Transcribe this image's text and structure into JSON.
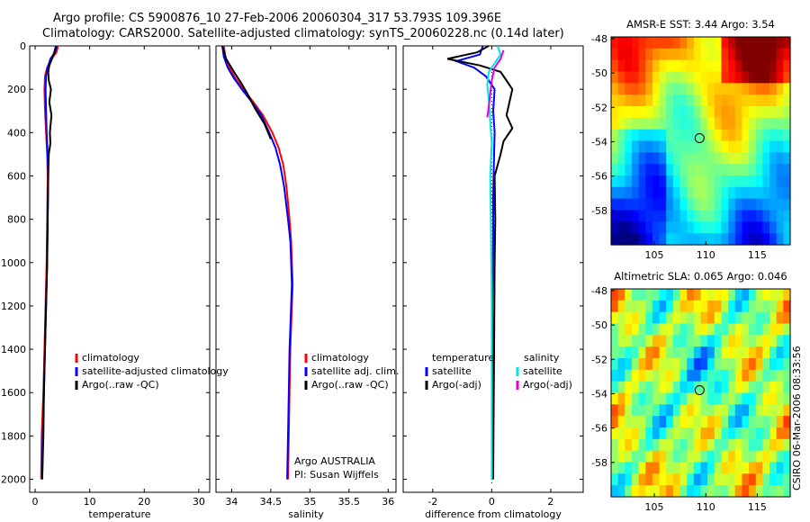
{
  "header": {
    "line1": "Argo profile: CS 5900876_10 27-Feb-2006 20060304_317 53.793S 109.396E",
    "line2": "Climatology: CARS2000. Satellite-adjusted climatology: synTS_20060228.nc (0.14d later)"
  },
  "colors": {
    "climatology": "#ff0000",
    "satellite": "#0000ff",
    "argo": "#000000",
    "salinity_satellite": "#00e5e5",
    "salinity_argo": "#e000e0"
  },
  "chart_data": [
    {
      "type": "line",
      "name": "temperature-profile",
      "xlabel": "temperature",
      "ylabel": "",
      "xlim": [
        -1,
        32
      ],
      "ylim": [
        2060,
        0
      ],
      "xticks": [
        0,
        10,
        20,
        30
      ],
      "yticks": [
        0,
        200,
        400,
        600,
        800,
        1000,
        1200,
        1400,
        1600,
        1800,
        2000
      ],
      "ytick_labels": [
        "0",
        "200",
        "400",
        "600",
        "800",
        "1000",
        "1200",
        "1400",
        "1600",
        "1800",
        "2000"
      ],
      "series": [
        {
          "name": "climatology",
          "color": "#ff0000",
          "x": [
            4.2,
            3.9,
            3.0,
            2.2,
            1.8,
            1.7,
            1.8,
            2.0,
            2.2,
            2.3,
            2.2,
            2.1,
            1.9,
            1.7,
            1.5,
            1.2,
            1.1
          ],
          "y": [
            0,
            30,
            60,
            100,
            140,
            200,
            300,
            400,
            500,
            600,
            800,
            1000,
            1200,
            1400,
            1600,
            1800,
            2000
          ]
        },
        {
          "name": "satellite-adjusted climatology",
          "color": "#0000ff",
          "x": [
            4.0,
            3.6,
            2.8,
            2.3,
            2.0,
            1.9,
            2.0,
            2.1,
            2.3,
            2.4,
            2.3,
            2.2,
            2.0,
            1.8,
            1.6,
            1.4,
            1.3
          ],
          "y": [
            0,
            30,
            60,
            100,
            140,
            200,
            300,
            400,
            500,
            600,
            800,
            1000,
            1200,
            1400,
            1600,
            1800,
            2000
          ]
        },
        {
          "name": "Argo(..raw -QC)",
          "color": "#000000",
          "x": [
            3.8,
            3.5,
            3.1,
            2.6,
            2.4,
            2.5,
            2.9,
            2.6,
            3.0,
            2.7,
            2.8,
            2.5,
            2.4,
            2.3,
            2.2,
            2.0,
            1.8,
            1.6,
            1.5,
            1.3
          ],
          "y": [
            0,
            30,
            60,
            90,
            120,
            160,
            200,
            260,
            320,
            400,
            450,
            500,
            600,
            800,
            1000,
            1200,
            1400,
            1600,
            1800,
            2000
          ]
        }
      ],
      "legend": {
        "position": "bottom-right",
        "entries": [
          "climatology",
          "satellite-adjusted climatology",
          "Argo(..raw -QC)"
        ]
      }
    },
    {
      "type": "line",
      "name": "salinity-profile",
      "xlabel": "salinity",
      "xlim": [
        33.8,
        36.1
      ],
      "ylim": [
        2060,
        0
      ],
      "xticks": [
        34,
        34.5,
        35,
        35.5,
        36
      ],
      "xtick_labels": [
        "34",
        "34.5",
        "35",
        "35.5",
        "36"
      ],
      "series": [
        {
          "name": "climatology",
          "color": "#ff0000",
          "x": [
            33.9,
            33.92,
            33.97,
            34.05,
            34.15,
            34.28,
            34.4,
            34.52,
            34.6,
            34.66,
            34.7,
            34.74,
            34.76,
            34.77,
            34.78,
            34.77,
            34.75,
            34.74,
            34.73,
            34.72
          ],
          "y": [
            0,
            50,
            100,
            150,
            200,
            260,
            320,
            400,
            470,
            550,
            650,
            800,
            900,
            1000,
            1100,
            1200,
            1400,
            1600,
            1800,
            2000
          ]
        },
        {
          "name": "satellite adj. clim.",
          "color": "#0000ff",
          "x": [
            33.88,
            33.9,
            33.95,
            34.03,
            34.13,
            34.26,
            34.38,
            34.48,
            34.56,
            34.62,
            34.67,
            34.72,
            34.75,
            34.76,
            34.77,
            34.76,
            34.74,
            34.73,
            34.72,
            34.71
          ],
          "y": [
            0,
            50,
            100,
            150,
            200,
            260,
            320,
            400,
            470,
            550,
            650,
            800,
            900,
            1000,
            1100,
            1200,
            1400,
            1600,
            1800,
            2000
          ]
        },
        {
          "name": "Argo(..raw -QC)",
          "color": "#000000",
          "x": [
            33.88,
            33.93,
            34.03,
            34.12,
            34.2,
            34.3,
            34.42,
            34.5
          ],
          "y": [
            0,
            60,
            120,
            170,
            220,
            290,
            360,
            430
          ]
        }
      ],
      "legend": {
        "position": "bottom-right",
        "entries": [
          "climatology",
          "satellite adj. clim.",
          "Argo(..raw -QC)"
        ]
      },
      "annotation": [
        "Argo AUSTRALIA",
        "PI: Susan Wijffels"
      ]
    },
    {
      "type": "line",
      "name": "difference-profile",
      "xlabel": "difference from climatology",
      "xlim": [
        -3,
        3.1
      ],
      "ylim": [
        2060,
        0
      ],
      "xticks": [
        -2,
        0,
        2
      ],
      "series": [
        {
          "name": "temperature satellite",
          "color": "#0000ff",
          "x": [
            -0.3,
            -0.4,
            -1.2,
            -0.6,
            -0.2,
            0.1,
            0.05,
            0.1,
            0.08,
            0.05,
            0.05,
            0.02,
            0.05,
            0.04,
            0.03,
            0.02
          ],
          "y": [
            0,
            40,
            70,
            100,
            140,
            200,
            300,
            400,
            500,
            700,
            900,
            1200,
            1500,
            1700,
            1900,
            2000
          ]
        },
        {
          "name": "temperature Argo(-adj)",
          "color": "#000000",
          "x": [
            -0.1,
            -0.5,
            -1.5,
            -0.4,
            0.3,
            0.5,
            0.7,
            0.6,
            0.5,
            0.7,
            0.4,
            0.3,
            0.1,
            0.12,
            0.1,
            0.08,
            0.06,
            0.05
          ],
          "y": [
            0,
            30,
            60,
            90,
            120,
            160,
            200,
            260,
            320,
            380,
            440,
            500,
            600,
            800,
            1000,
            1400,
            1800,
            2000
          ]
        },
        {
          "name": "salinity satellite",
          "color": "#00e5e5",
          "x": [
            0.2,
            0.3,
            0.1,
            -0.1,
            -0.15,
            -0.1,
            -0.05,
            0.0,
            -0.05,
            -0.03,
            0.0,
            0.0,
            0.0
          ],
          "y": [
            0,
            40,
            80,
            120,
            180,
            250,
            350,
            450,
            600,
            800,
            1200,
            1600,
            2000
          ]
        },
        {
          "name": "salinity Argo(-adj)",
          "color": "#e000e0",
          "x": [
            0.4,
            0.3,
            0.1,
            0.0,
            -0.05,
            -0.1,
            -0.15
          ],
          "y": [
            20,
            60,
            100,
            160,
            220,
            280,
            330
          ]
        }
      ],
      "legend": {
        "position": "bottom",
        "groups": [
          "temperature",
          "salinity"
        ],
        "entries": [
          "satellite",
          "Argo(-adj)",
          "satellite",
          "Argo(-adj)"
        ]
      }
    },
    {
      "type": "heatmap",
      "name": "sst-map",
      "title": "AMSR-E SST: 3.44 Argo: 3.54",
      "xlim": [
        100.8,
        118.2
      ],
      "ylim": [
        -60,
        -47.9
      ],
      "xticks": [
        105,
        110,
        115
      ],
      "yticks": [
        -48,
        -50,
        -52,
        -54,
        -56,
        -58
      ],
      "marker": {
        "lon": 109.396,
        "lat": -53.793
      },
      "grid": {
        "cols": 26,
        "rows": 18,
        "base": "sst"
      }
    },
    {
      "type": "heatmap",
      "name": "sla-map",
      "title": "Altimetric SLA: 0.065 Argo: 0.046",
      "xlim": [
        100.8,
        118.2
      ],
      "ylim": [
        -60,
        -47.9
      ],
      "xticks": [
        105,
        110,
        115
      ],
      "yticks": [
        -48,
        -50,
        -52,
        -54,
        -56,
        -58
      ],
      "marker": {
        "lon": 109.396,
        "lat": -53.793
      },
      "grid": {
        "cols": 26,
        "rows": 18,
        "base": "sla"
      }
    }
  ],
  "credit": "CSIRO 06-Mar-2006 08:33:56"
}
